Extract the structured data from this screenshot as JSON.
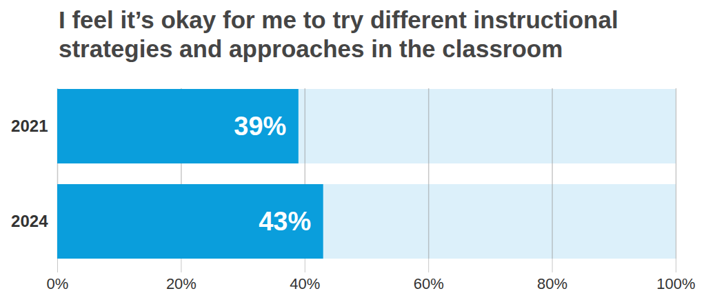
{
  "chart_data": {
    "type": "bar",
    "orientation": "horizontal",
    "title": "I feel it’s okay for me to try different instructional strategies and approaches in the classroom",
    "categories": [
      "2021",
      "2024"
    ],
    "values": [
      39,
      43
    ],
    "value_labels": [
      "39%",
      "43%"
    ],
    "color": "#0a9edc",
    "data_labels": true,
    "grid": true,
    "xlim": [
      0,
      100
    ],
    "xticks": [
      {
        "value": 0,
        "label": "0%"
      },
      {
        "value": 20,
        "label": "20%"
      },
      {
        "value": 40,
        "label": "40%"
      },
      {
        "value": 60,
        "label": "60%"
      },
      {
        "value": 80,
        "label": "80%"
      },
      {
        "value": 100,
        "label": "100%"
      }
    ]
  }
}
